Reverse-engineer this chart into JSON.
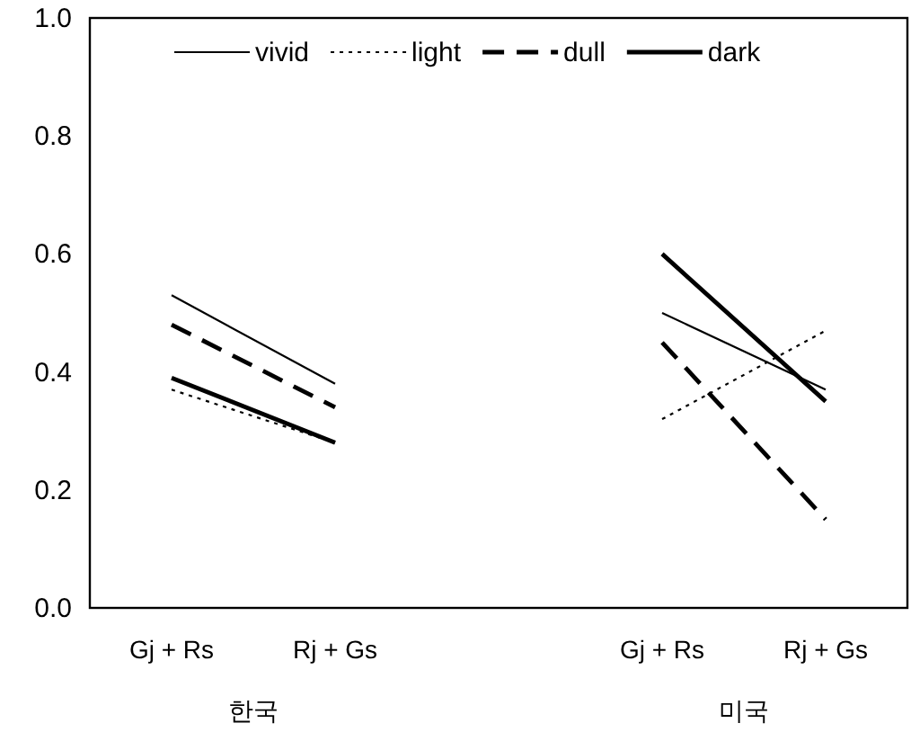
{
  "chart_data": {
    "type": "line",
    "categories": [
      "Gj + Rs",
      "Rj + Gs",
      null,
      "Gj + Rs",
      "Rj + Gs"
    ],
    "annotations": [
      "한국",
      "미국"
    ],
    "ylim": [
      0,
      1
    ],
    "yticks": [
      {
        "value": 0,
        "label": "0.0"
      },
      {
        "value": 0.2,
        "label": "0.2"
      },
      {
        "value": 0.4,
        "label": "0.4"
      },
      {
        "value": 0.6,
        "label": "0.6"
      },
      {
        "value": 0.8,
        "label": "0.8"
      },
      {
        "value": 1,
        "label": "1.0"
      }
    ],
    "grid": false,
    "legend": "top",
    "marker": "none",
    "series": [
      {
        "name": "vivid",
        "color": "#000000",
        "line_style": "solid",
        "values": [
          0.53,
          0.38,
          null,
          0.5,
          0.37
        ]
      },
      {
        "name": "light",
        "color": "#000000",
        "line_style": "dotted",
        "values": [
          0.37,
          0.28,
          null,
          0.32,
          0.47
        ]
      },
      {
        "name": "dull",
        "color": "#000000",
        "line_style": "dashed",
        "values": [
          0.48,
          0.34,
          null,
          0.45,
          0.15
        ]
      },
      {
        "name": "dark",
        "color": "#000000",
        "line_style": "solid",
        "values": [
          0.39,
          0.28,
          null,
          0.6,
          0.35
        ]
      }
    ]
  }
}
